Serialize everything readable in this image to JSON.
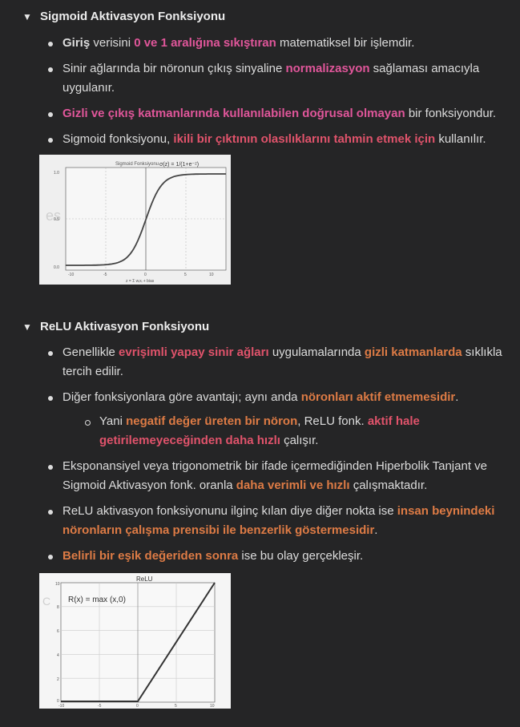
{
  "sigmoid": {
    "heading": "Sigmoid Aktivasyon Fonksiyonu",
    "items": [
      {
        "parts": [
          [
            "bold",
            "Giriş"
          ],
          [
            "plain",
            " verisini "
          ],
          [
            "pink",
            "0 ve 1 aralığına sıkıştıran"
          ],
          [
            "plain",
            " matematiksel bir işlemdir."
          ]
        ]
      },
      {
        "parts": [
          [
            "plain",
            "Sinir ağlarında bir nöronun çıkış sinyaline "
          ],
          [
            "pink",
            "normalizasyon"
          ],
          [
            "plain",
            " sağlaması amacıyla uygulanır."
          ]
        ]
      },
      {
        "parts": [
          [
            "pink",
            "Gizli ve çıkış katmanlarında kullanılabilen doğrusal olmayan"
          ],
          [
            "plain",
            " bir fonksiyondur."
          ]
        ]
      },
      {
        "parts": [
          [
            "plain",
            "Sigmoid fonksiyonu, "
          ],
          [
            "red",
            "ikili bir çıktının olasılıklarını tahmin etmek için"
          ],
          [
            "plain",
            " kullanılır."
          ]
        ]
      }
    ],
    "image": {
      "title": "Sigmoid Fonksiyonu",
      "formula": "σ(z) = 1/(1+e⁻ᶻ)",
      "xlabel": "z = Σ wᵢxᵢ + bias",
      "yticks": [
        "1.0",
        "0.5",
        "0.0"
      ],
      "xticks": [
        "-10",
        "-5",
        "0",
        "5",
        "10"
      ]
    }
  },
  "relu": {
    "heading": "ReLU Aktivasyon Fonksiyonu",
    "items": [
      {
        "parts": [
          [
            "plain",
            "Genellikle "
          ],
          [
            "red",
            "evrişimli yapay sinir ağları"
          ],
          [
            "plain",
            " uygulamalarında "
          ],
          [
            "orange",
            "gizli katmanlarda"
          ],
          [
            "plain",
            " sıklıkla tercih edilir."
          ]
        ]
      },
      {
        "parts": [
          [
            "plain",
            "Diğer fonksiyonlara göre avantajı; aynı anda "
          ],
          [
            "orange",
            "nöronları aktif etmemesidir"
          ],
          [
            "plain",
            "."
          ]
        ],
        "sub": {
          "parts": [
            [
              "plain",
              "Yani "
            ],
            [
              "orange",
              "negatif değer üreten bir nöron"
            ],
            [
              "plain",
              ", ReLU fonk. "
            ],
            [
              "red",
              "aktif hale getirilemeyeceğinden daha hızlı"
            ],
            [
              "plain",
              " çalışır."
            ]
          ]
        }
      },
      {
        "parts": [
          [
            "plain",
            "Eksponansiyel  veya trigonometrik bir ifade içermediğinden Hiperbolik Tanjant ve Sigmoid Aktivasyon fonk. oranla "
          ],
          [
            "orange",
            "daha verimli ve hızlı"
          ],
          [
            "plain",
            " çalışmaktadır."
          ]
        ]
      },
      {
        "parts": [
          [
            "plain",
            "ReLU aktivasyon fonksiyonunu ilginç kılan diye diğer nokta ise "
          ],
          [
            "orange",
            "insan beynindeki nöronların çalışma prensibi ile benzerlik göstermesidir"
          ],
          [
            "plain",
            "."
          ]
        ]
      },
      {
        "parts": [
          [
            "orange",
            "Belirli bir eşik değeriden sonra"
          ],
          [
            "plain",
            " ise bu olay gerçekleşir."
          ]
        ]
      }
    ],
    "image": {
      "title": "ReLU",
      "formula": "R(x) = max (x,0)",
      "yticks": [
        "10",
        "8",
        "6",
        "4",
        "2",
        "0"
      ],
      "xticks": [
        "-10",
        "-5",
        "0",
        "5",
        "10"
      ]
    }
  }
}
